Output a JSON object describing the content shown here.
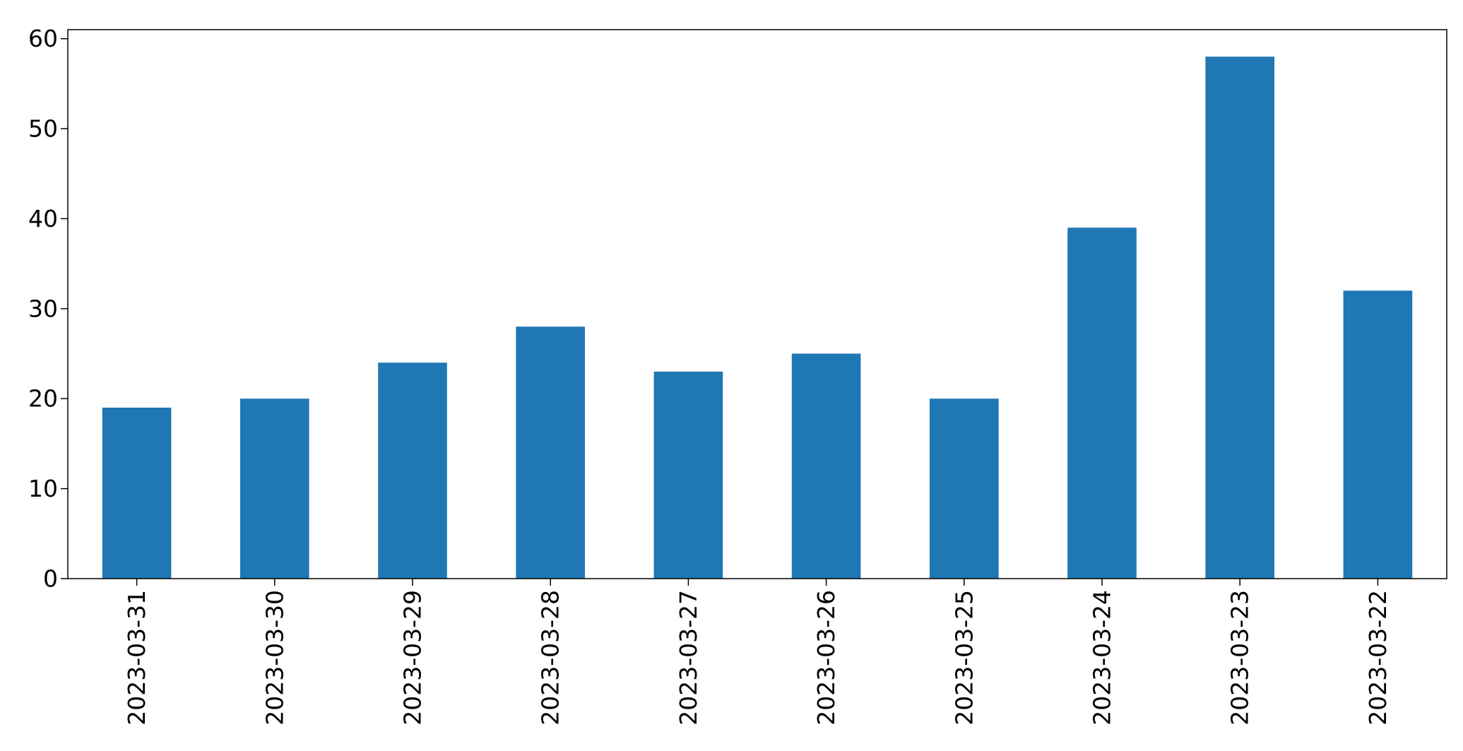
{
  "chart_data": {
    "type": "bar",
    "categories": [
      "2023-03-31",
      "2023-03-30",
      "2023-03-29",
      "2023-03-28",
      "2023-03-27",
      "2023-03-26",
      "2023-03-25",
      "2023-03-24",
      "2023-03-23",
      "2023-03-22"
    ],
    "values": [
      19,
      20,
      24,
      28,
      23,
      25,
      20,
      39,
      58,
      32
    ],
    "ylim": [
      0,
      61
    ],
    "yticks": [
      0,
      10,
      20,
      30,
      40,
      50,
      60
    ],
    "title": "",
    "xlabel": "",
    "ylabel": "",
    "grid": false,
    "legend": false,
    "x_tick_rotation": "vertical",
    "bar_color": "#1f77b4"
  }
}
